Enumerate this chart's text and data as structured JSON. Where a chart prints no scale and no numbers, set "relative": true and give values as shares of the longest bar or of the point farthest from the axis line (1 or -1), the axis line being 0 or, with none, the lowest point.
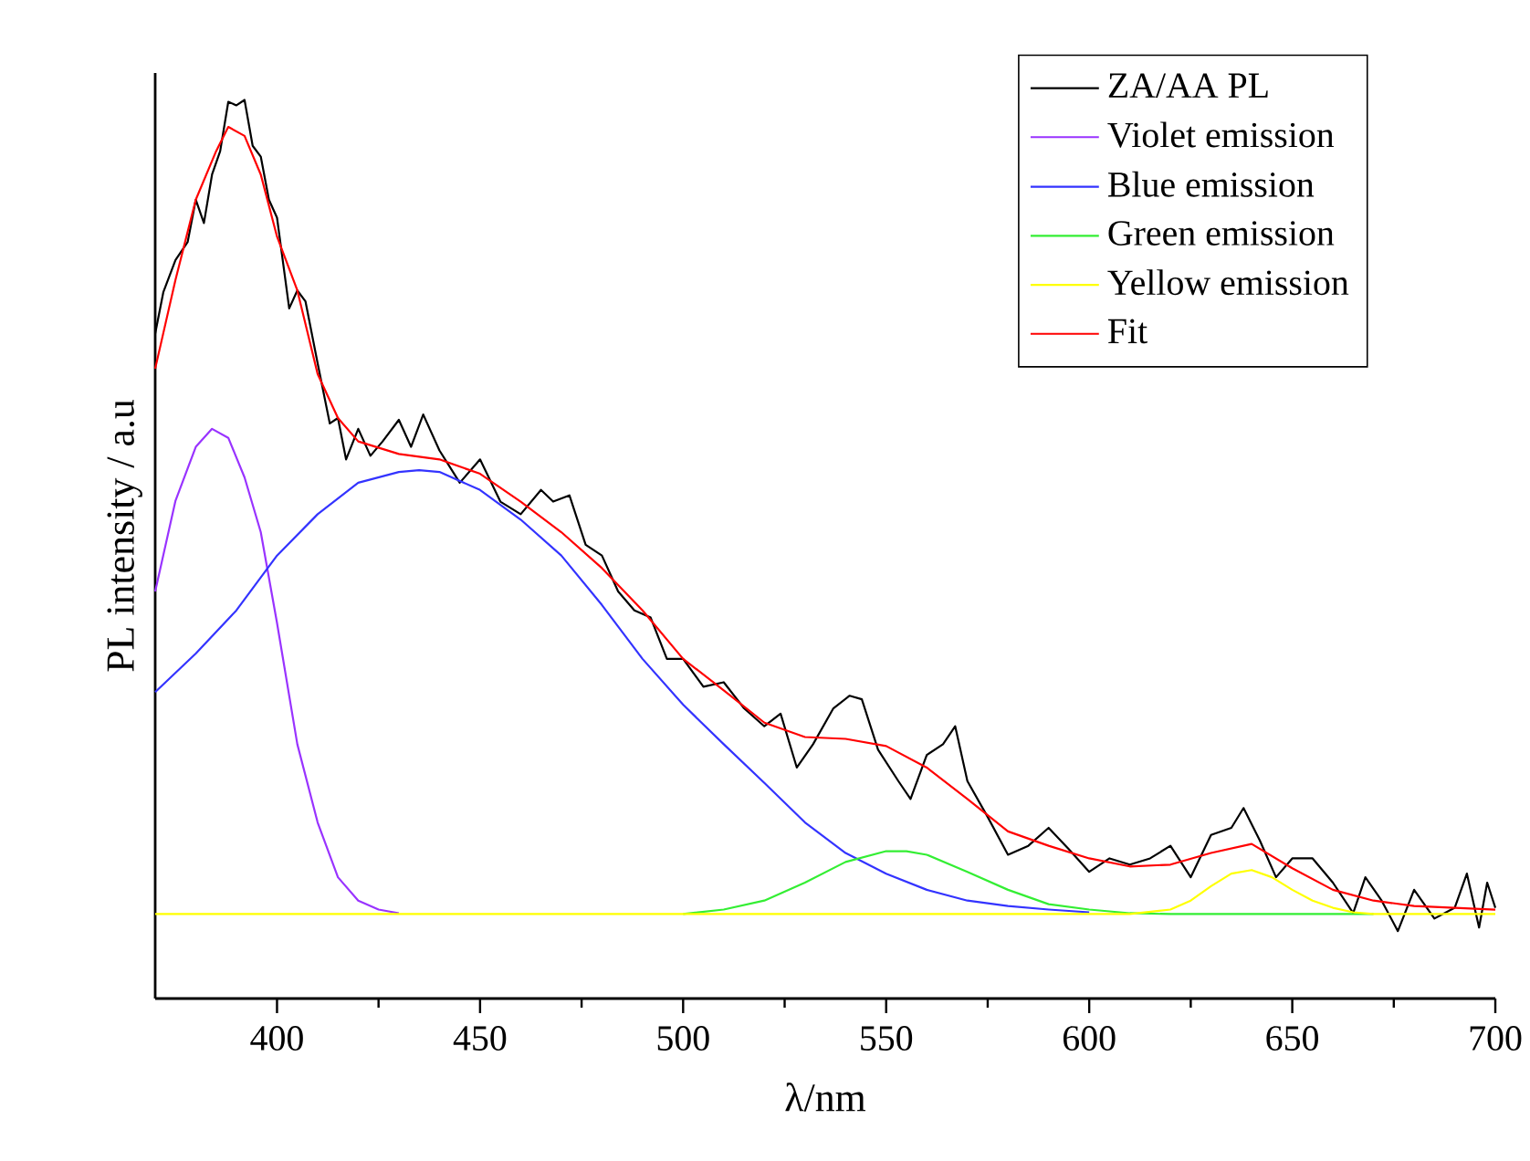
{
  "chart_data": {
    "type": "line",
    "xlabel": "λ/nm",
    "ylabel": "PL intensity / a.u",
    "relative": true,
    "xlim": [
      370,
      700
    ],
    "xticks": [
      400,
      450,
      500,
      550,
      600,
      650,
      700
    ],
    "tick_labels": "x",
    "legend": "top right",
    "series": [
      {
        "name": "ZA/AA PL",
        "color": "#000000",
        "x": [
          370,
          372,
          375,
          378,
          380,
          382,
          384,
          386,
          388,
          390,
          392,
          394,
          396,
          398,
          400,
          403,
          405,
          407,
          410,
          413,
          415,
          417,
          420,
          423,
          426,
          430,
          433,
          436,
          440,
          445,
          450,
          455,
          460,
          465,
          468,
          472,
          476,
          480,
          484,
          488,
          492,
          496,
          500,
          505,
          510,
          515,
          520,
          524,
          528,
          532,
          537,
          541,
          544,
          548,
          553,
          556,
          560,
          564,
          567,
          570,
          575,
          580,
          585,
          590,
          595,
          600,
          605,
          610,
          615,
          620,
          625,
          630,
          635,
          638,
          642,
          646,
          650,
          655,
          660,
          665,
          668,
          672,
          676,
          680,
          685,
          690,
          693,
          696,
          698,
          700
        ],
        "values": [
          0.74,
          0.786,
          0.822,
          0.842,
          0.889,
          0.863,
          0.917,
          0.943,
          0.998,
          0.994,
          1.0,
          0.949,
          0.937,
          0.889,
          0.869,
          0.768,
          0.788,
          0.776,
          0.707,
          0.64,
          0.646,
          0.6,
          0.634,
          0.604,
          0.62,
          0.644,
          0.614,
          0.65,
          0.61,
          0.574,
          0.6,
          0.553,
          0.539,
          0.566,
          0.553,
          0.56,
          0.505,
          0.493,
          0.453,
          0.432,
          0.424,
          0.378,
          0.378,
          0.347,
          0.352,
          0.323,
          0.303,
          0.317,
          0.257,
          0.283,
          0.323,
          0.337,
          0.333,
          0.277,
          0.242,
          0.222,
          0.271,
          0.283,
          0.303,
          0.242,
          0.202,
          0.16,
          0.17,
          0.19,
          0.166,
          0.141,
          0.156,
          0.149,
          0.156,
          0.17,
          0.135,
          0.182,
          0.19,
          0.212,
          0.176,
          0.135,
          0.156,
          0.156,
          0.129,
          0.095,
          0.135,
          0.109,
          0.075,
          0.121,
          0.089,
          0.101,
          0.139,
          0.079,
          0.129,
          0.101
        ]
      },
      {
        "name": "Violet emission",
        "color": "#9933ff",
        "x": [
          370,
          375,
          380,
          384,
          388,
          392,
          396,
          400,
          405,
          410,
          415,
          420,
          425,
          430
        ],
        "values": [
          0.453,
          0.554,
          0.614,
          0.634,
          0.624,
          0.58,
          0.519,
          0.418,
          0.283,
          0.196,
          0.135,
          0.109,
          0.099,
          0.095
        ]
      },
      {
        "name": "Blue emission",
        "color": "#3333ff",
        "x": [
          370,
          380,
          390,
          400,
          410,
          420,
          430,
          435,
          440,
          450,
          460,
          470,
          480,
          490,
          500,
          510,
          520,
          530,
          540,
          550,
          560,
          570,
          580,
          590,
          600
        ],
        "values": [
          0.341,
          0.384,
          0.432,
          0.493,
          0.539,
          0.574,
          0.586,
          0.588,
          0.586,
          0.566,
          0.533,
          0.493,
          0.438,
          0.378,
          0.327,
          0.283,
          0.24,
          0.196,
          0.162,
          0.139,
          0.121,
          0.109,
          0.103,
          0.099,
          0.096
        ]
      },
      {
        "name": "Green emission",
        "color": "#33ee33",
        "x": [
          500,
          510,
          520,
          530,
          540,
          550,
          555,
          560,
          570,
          580,
          590,
          600,
          610,
          620,
          670
        ],
        "values": [
          0.094,
          0.099,
          0.109,
          0.129,
          0.152,
          0.164,
          0.164,
          0.16,
          0.141,
          0.121,
          0.105,
          0.099,
          0.095,
          0.094,
          0.094
        ]
      },
      {
        "name": "Yellow emission",
        "color": "#ffff00",
        "x": [
          370,
          610,
          620,
          625,
          630,
          635,
          640,
          645,
          650,
          655,
          660,
          665,
          670,
          700
        ],
        "values": [
          0.094,
          0.094,
          0.099,
          0.109,
          0.125,
          0.139,
          0.143,
          0.135,
          0.121,
          0.109,
          0.101,
          0.096,
          0.094,
          0.094
        ]
      },
      {
        "name": "Fit",
        "color": "#ff0000",
        "x": [
          370,
          375,
          380,
          385,
          388,
          392,
          396,
          400,
          405,
          410,
          415,
          420,
          430,
          440,
          450,
          460,
          470,
          480,
          490,
          500,
          510,
          520,
          530,
          540,
          550,
          560,
          570,
          580,
          590,
          600,
          610,
          620,
          630,
          640,
          650,
          660,
          670,
          680,
          690,
          700
        ],
        "values": [
          0.701,
          0.8,
          0.889,
          0.943,
          0.97,
          0.96,
          0.917,
          0.848,
          0.788,
          0.695,
          0.646,
          0.62,
          0.606,
          0.6,
          0.584,
          0.553,
          0.519,
          0.479,
          0.432,
          0.378,
          0.343,
          0.307,
          0.291,
          0.289,
          0.281,
          0.257,
          0.222,
          0.186,
          0.17,
          0.156,
          0.147,
          0.149,
          0.162,
          0.172,
          0.145,
          0.121,
          0.109,
          0.103,
          0.101,
          0.099
        ]
      }
    ]
  }
}
